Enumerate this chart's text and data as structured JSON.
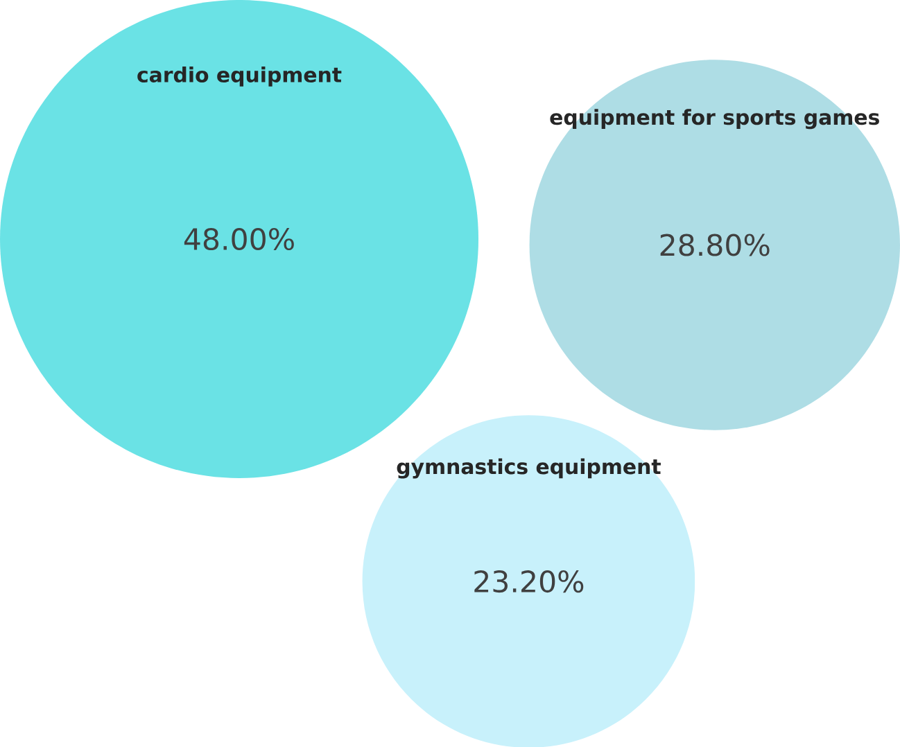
{
  "chart_data": {
    "type": "other",
    "categories": [
      "cardio equipment",
      "equipment for sports games",
      "gymnastics equipment"
    ],
    "values": [
      48.0,
      28.8,
      23.2
    ],
    "value_labels": [
      "48.00%",
      "28.80%",
      "23.20%"
    ],
    "colors": [
      "#6ae2e5",
      "#aedde5",
      "#c8f1fb"
    ]
  }
}
